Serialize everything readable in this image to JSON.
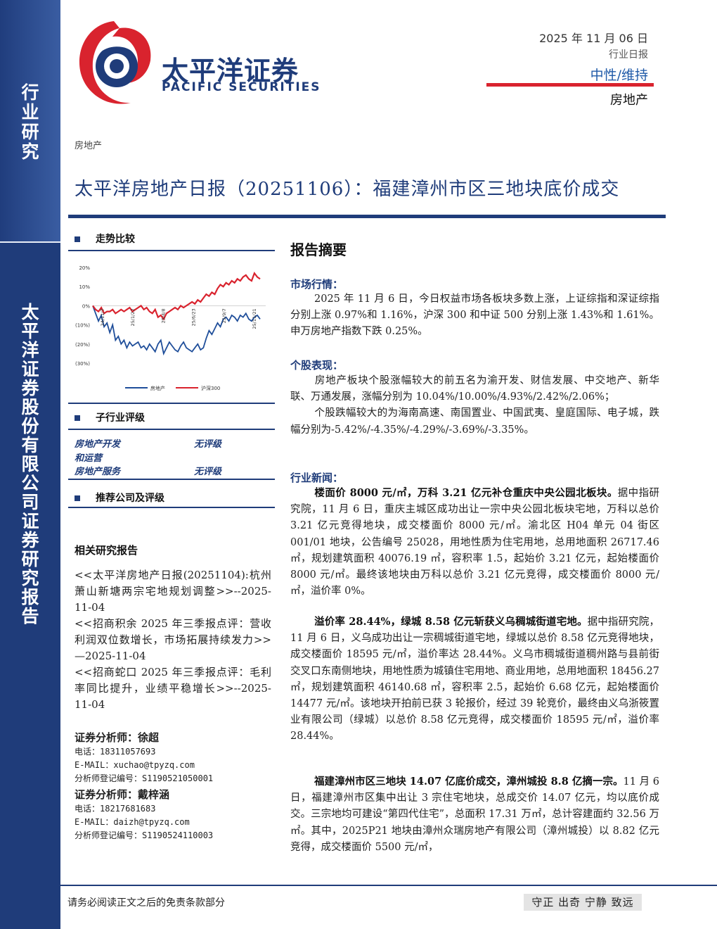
{
  "sidebar": {
    "top_label": [
      "行",
      "业",
      "研",
      "究"
    ],
    "company_label": [
      "太",
      "平",
      "洋",
      "证",
      "券",
      "股",
      "份",
      "有",
      "限",
      "公",
      "司",
      "证",
      "券",
      "研",
      "究",
      "报",
      "告"
    ]
  },
  "logo": {
    "cn": "太平洋证券",
    "en": "PACIFIC SECURITIES"
  },
  "header": {
    "date": "2025 年 11 月 06 日",
    "report_type": "行业日报",
    "rating": "中性/维持",
    "sector": "房地产"
  },
  "breadcrumb": "房地产",
  "title": "太平洋房地产日报（20251106）：福建漳州市区三地块底价成交",
  "left": {
    "trend_heading": "走势比较",
    "sub_rating_heading": "子行业评级",
    "sub_ratings": [
      {
        "name": "房地产开发和运营",
        "name_l1": "房地产开发",
        "name_l2": "和运营",
        "rating": "无评级"
      },
      {
        "name_l1": "房地产服务",
        "rating": "无评级"
      }
    ],
    "recommend_heading": "推荐公司及评级",
    "related_heading": "相关研究报告",
    "related": [
      "<<太平洋房地产日报(20251104):杭州萧山新塘两宗宅地规划调整>>--2025-11-04",
      "<<招商积余 2025 年三季报点评：营收利润双位数增长，市场拓展持续发力>>—2025-11-04",
      "<<招商蛇口 2025 年三季报点评：毛利率同比提升，业绩平稳增长>>--2025-11-04"
    ],
    "analysts": [
      {
        "title": "证券分析师：徐超",
        "phone": "电话：18311057693",
        "email": "E-MAIL：xuchao@tpyzq.com",
        "reg": "分析师登记编号：S1190521050001"
      },
      {
        "title": "证券分析师：戴梓涵",
        "phone": "电话：18217681683",
        "email": "E-MAIL：daizh@tpyzq.com",
        "reg": "分析师登记编号：S1190524110003"
      }
    ]
  },
  "chart_data": {
    "type": "line",
    "title": "",
    "x_ticks": [
      "24/11/7",
      "25/1/22",
      "25/4/8",
      "25/6/23",
      "25/9/7",
      "25/11/21"
    ],
    "y_ticks": [
      "20%",
      "10%",
      "0%",
      "(10%)",
      "(20%)",
      "(30%)"
    ],
    "ylim": [
      -30,
      20
    ],
    "series": [
      {
        "name": "房地产",
        "color": "#1f4e9a",
        "values": [
          0,
          -4,
          -8,
          -5,
          -11,
          -9,
          -14,
          -10,
          -18,
          -16,
          -20,
          -18,
          -22,
          -19,
          -21,
          -20,
          -19,
          -22,
          -21,
          -23,
          -20,
          -22,
          -24,
          -20,
          -18,
          -25,
          -22,
          -19,
          -21,
          -23,
          -24,
          -21,
          -19,
          -22,
          -23,
          -24,
          -22,
          -20,
          -23,
          -22,
          -17,
          -13,
          -15,
          -12,
          -9,
          -11,
          -7,
          -6,
          -8,
          -5,
          -6,
          -8,
          -5,
          -6,
          -4,
          -7,
          -8,
          -6,
          -5,
          -7
        ]
      },
      {
        "name": "沪深300",
        "color": "#d9232e",
        "values": [
          0,
          -2,
          -3,
          -1,
          -4,
          -3,
          -3,
          -2,
          -4,
          -3,
          -2,
          -3,
          -2,
          -1,
          -3,
          -2,
          -1,
          0,
          -2,
          -1,
          -3,
          -4,
          -2,
          -6,
          -5,
          -7,
          -4,
          -3,
          -2,
          -1,
          -2,
          0,
          -1,
          0,
          1,
          2,
          1,
          3,
          2,
          4,
          6,
          5,
          7,
          6,
          9,
          11,
          10,
          12,
          11,
          13,
          12,
          14,
          13,
          15,
          16,
          14,
          13,
          17,
          15,
          14
        ]
      }
    ],
    "legend": "bottom"
  },
  "right": {
    "abstract_heading": "报告摘要",
    "market_heading": "市场行情：",
    "market_text": "2025 年 11 月 6 日，今日权益市场各板块多数上涨，上证综指和深证综指分别上涨 0.97%和 1.16%，沪深 300 和中证 500 分别上涨 1.43%和 1.61%。申万房地产指数下跌 0.25%。",
    "stock_heading": "个股表现：",
    "stock_text1": "房地产板块个股涨幅较大的前五名为渝开发、财信发展、中交地产、新华联、万通发展，涨幅分别为 10.04%/10.00%/4.93%/2.42%/2.06%；",
    "stock_text2": "个股跌幅较大的为海南高速、南国置业、中国武夷、皇庭国际、电子城，跌幅分别为-5.42%/-4.35%/-4.29%/-3.69%/-3.35%。",
    "news_heading": "行业新闻：",
    "news1_lead": "楼面价 8000 元/㎡，万科 3.21 亿元补仓重庆中央公园北板块。",
    "news1_text": "据中指研究院，11 月 6 日，重庆主城区成功出让一宗中央公园北板块宅地，万科以总价 3.21 亿元竞得地块，成交楼面价 8000 元/㎡。渝北区 H04 单元 04 街区 001/01 地块，公告编号 25028，用地性质为住宅用地，总用地面积 26717.46 ㎡，规划建筑面积 40076.19 ㎡，容积率 1.5，起始价 3.21 亿元，起始楼面价 8000 元/㎡。最终该地块由万科以总价 3.21 亿元竞得，成交楼面价 8000 元/㎡，溢价率 0%。",
    "news2_lead": "溢价率 28.44%，绿城 8.58 亿元斩获义乌稠城街道宅地。",
    "news2_text": "据中指研究院，11 月 6 日，义乌成功出让一宗稠城街道宅地，绿城以总价 8.58 亿元竞得地块，成交楼面价 18595 元/㎡，溢价率达 28.44%。义乌市稠城街道稠州路与县前街交叉口东南侧地块，用地性质为城镇住宅用地、商业用地，总用地面积 18456.27 ㎡，规划建筑面积 46140.68 ㎡，容积率 2.5，起始价 6.68 亿元，起始楼面价 14477 元/㎡。该地块开拍前已获 3 轮报价，经过 39 轮竞价，最终由义乌浙筱置业有限公司（绿城）以总价 8.58 亿元竞得，成交楼面价 18595 元/㎡，溢价率 28.44%。",
    "news3_lead": "福建漳州市区三地块 14.07 亿底价成交，漳州城投 8.8 亿摘一宗。",
    "news3_text": "11 月 6 日，福建漳州市区集中出让 3 宗住宅地块，总成交价 14.07 亿元，均以底价成交。三宗地均可建设“第四代住宅”，总面积 17.31 万㎡，总计容建面约 32.56 万㎡。其中，2025P21 地块由漳州众瑞房地产有限公司（漳州城投）以 8.82 亿元竞得，成交楼面价 5500 元/㎡，"
  },
  "footer": {
    "disclaimer": "请务必阅读正文之后的免责条款部分",
    "motto": "守正 出奇 宁静 致远"
  }
}
